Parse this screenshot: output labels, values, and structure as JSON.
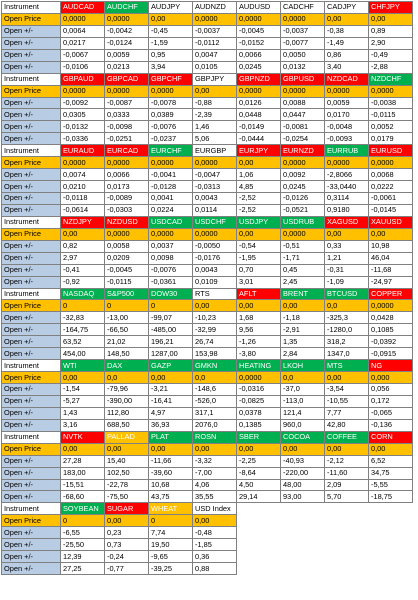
{
  "table": {
    "row_labels": {
      "instrument": "Instrument",
      "open_price": "Open Price",
      "open_change": "Open +/-"
    },
    "blocks": [
      {
        "headers": [
          {
            "name": "AUDCAD",
            "color": "red"
          },
          {
            "name": "AUDCHF",
            "color": "green"
          },
          {
            "name": "AUDJPY",
            "color": "white"
          },
          {
            "name": "AUDNZD",
            "color": "white"
          },
          {
            "name": "AUDUSD",
            "color": "white"
          },
          {
            "name": "CADCHF",
            "color": "white"
          },
          {
            "name": "CADJPY",
            "color": "white"
          },
          {
            "name": "CHFJPY",
            "color": "red"
          }
        ],
        "open_price": [
          "0,0000",
          "0,0000",
          "0,00",
          "0,0000",
          "0,0000",
          "0,0000",
          "0,00",
          "0,00"
        ],
        "changes": [
          [
            "0,0064",
            "-0,0042",
            "-0,45",
            "-0,0037",
            "-0,0045",
            "-0,0037",
            "-0,38",
            "0,89"
          ],
          [
            "0,0217",
            "-0,0124",
            "-1,59",
            "-0,0112",
            "-0,0152",
            "-0,0077",
            "-1,49",
            "2,90"
          ],
          [
            "-0,0067",
            "0,0059",
            "0,95",
            "0,0047",
            "0,0066",
            "0,0050",
            "0,86",
            "-0,49"
          ],
          [
            "-0,0106",
            "0,0213",
            "3,94",
            "0,0105",
            "0,0245",
            "0,0132",
            "3,40",
            "-2,88"
          ]
        ]
      },
      {
        "headers": [
          {
            "name": "GBPAUD",
            "color": "red"
          },
          {
            "name": "GBPCAD",
            "color": "red"
          },
          {
            "name": "GBPCHF",
            "color": "red"
          },
          {
            "name": "GBPJPY",
            "color": "white"
          },
          {
            "name": "GBPNZD",
            "color": "red"
          },
          {
            "name": "GBPUSD",
            "color": "red"
          },
          {
            "name": "NZDCAD",
            "color": "red"
          },
          {
            "name": "NZDCHF",
            "color": "green"
          }
        ],
        "open_price": [
          "0,0000",
          "0,0000",
          "0,0000",
          "0,00",
          "0,0000",
          "0,0000",
          "0,0000",
          "0,0000"
        ],
        "changes": [
          [
            "-0,0092",
            "-0,0087",
            "-0,0078",
            "-0,88",
            "0,0126",
            "0,0088",
            "0,0059",
            "-0,0038"
          ],
          [
            "0,0305",
            "0,0333",
            "0,0389",
            "-2,39",
            "0,0448",
            "0,0447",
            "0,0170",
            "-0,0115"
          ],
          [
            "-0,0132",
            "-0,0098",
            "-0,0076",
            "1,46",
            "-0,0149",
            "-0,0081",
            "-0,0048",
            "0,0052"
          ],
          [
            "-0,0336",
            "-0,0251",
            "-0,0237",
            "5,06",
            "-0,0444",
            "-0,0254",
            "-0,0093",
            "0,0179"
          ]
        ]
      },
      {
        "headers": [
          {
            "name": "EURAUD",
            "color": "red"
          },
          {
            "name": "EURCAD",
            "color": "red"
          },
          {
            "name": "EURCHF",
            "color": "green"
          },
          {
            "name": "EURGBP",
            "color": "white"
          },
          {
            "name": "EURJPY",
            "color": "red"
          },
          {
            "name": "EURNZD",
            "color": "red"
          },
          {
            "name": "EURRUB",
            "color": "green"
          },
          {
            "name": "EURUSD",
            "color": "red"
          }
        ],
        "open_price": [
          "0,0000",
          "0,0000",
          "0,0000",
          "0,0000",
          "0,00",
          "0,0000",
          "0,0000",
          "0,0000"
        ],
        "changes": [
          [
            "0,0074",
            "0,0066",
            "-0,0041",
            "-0,0047",
            "1,06",
            "0,0092",
            "-2,8066",
            "0,0068"
          ],
          [
            "0,0210",
            "0,0173",
            "-0,0128",
            "-0,0313",
            "4,85",
            "0,0245",
            "-33,0440",
            "0,0222"
          ],
          [
            "-0,0118",
            "-0,0089",
            "0,0041",
            "0,0043",
            "-2,52",
            "-0,0126",
            "0,3114",
            "-0,0061"
          ],
          [
            "-0,0614",
            "-0,0303",
            "0,0224",
            "0,0114",
            "-2,52",
            "-0,0521",
            "0,9180",
            "-0,0145"
          ]
        ]
      },
      {
        "headers": [
          {
            "name": "NZDJPY",
            "color": "red"
          },
          {
            "name": "NZDUSD",
            "color": "red"
          },
          {
            "name": "USDCAD",
            "color": "green"
          },
          {
            "name": "USDCHF",
            "color": "green"
          },
          {
            "name": "USDJPY",
            "color": "green"
          },
          {
            "name": "USDRUB",
            "color": "green"
          },
          {
            "name": "XAGUSD",
            "color": "red"
          },
          {
            "name": "XAUUSD",
            "color": "red"
          }
        ],
        "open_price": [
          "0,00",
          "0,0000",
          "0,0000",
          "0,0000",
          "0,00",
          "0,0000",
          "0,00",
          "0,00"
        ],
        "changes": [
          [
            "0,82",
            "0,0058",
            "0,0037",
            "-0,0050",
            "-0,54",
            "-0,51",
            "0,33",
            "10,98"
          ],
          [
            "2,97",
            "0,0209",
            "0,0098",
            "-0,0176",
            "-1,95",
            "-1,71",
            "1,21",
            "46,04"
          ],
          [
            "-0,41",
            "-0,0045",
            "-0,0076",
            "0,0043",
            "0,70",
            "0,45",
            "-0,31",
            "-11,68"
          ],
          [
            "-0,92",
            "-0,0115",
            "-0,0361",
            "0,0109",
            "3,01",
            "2,45",
            "-1,09",
            "-24,97"
          ]
        ]
      },
      {
        "headers": [
          {
            "name": "NASDAQ",
            "color": "green"
          },
          {
            "name": "S&P500",
            "color": "green"
          },
          {
            "name": "DOW30",
            "color": "green"
          },
          {
            "name": "RTS",
            "color": "white"
          },
          {
            "name": "AFLT",
            "color": "red"
          },
          {
            "name": "BRENT",
            "color": "green"
          },
          {
            "name": "BTCUSD",
            "color": "green"
          },
          {
            "name": "COPPER",
            "color": "red"
          }
        ],
        "open_price": [
          "0",
          "0",
          "0",
          "0,00",
          "0,00",
          "0,00",
          "0,0",
          "0,0000"
        ],
        "changes": [
          [
            "-32,83",
            "-13,00",
            "-99,07",
            "-10,23",
            "1,68",
            "-1,18",
            "-325,3",
            "0,0428"
          ],
          [
            "-164,75",
            "-66,50",
            "-485,00",
            "-32,99",
            "9,56",
            "-2,91",
            "-1280,0",
            "0,1085"
          ],
          [
            "63,52",
            "21,02",
            "196,21",
            "26,74",
            "-1,26",
            "1,35",
            "318,2",
            "-0,0392"
          ],
          [
            "454,00",
            "148,50",
            "1287,00",
            "153,98",
            "-3,80",
            "2,84",
            "1347,0",
            "-0,0915"
          ]
        ]
      },
      {
        "headers": [
          {
            "name": "WTI",
            "color": "green"
          },
          {
            "name": "DAX",
            "color": "green"
          },
          {
            "name": "GAZP",
            "color": "green"
          },
          {
            "name": "GMKN",
            "color": "green"
          },
          {
            "name": "HEATING",
            "color": "green"
          },
          {
            "name": "LKOH",
            "color": "green"
          },
          {
            "name": "MTS",
            "color": "green"
          },
          {
            "name": "NG",
            "color": "red"
          }
        ],
        "open_price": [
          "0,00",
          "0,0",
          "0,00",
          "0,0",
          "0,0000",
          "0,0",
          "0,00",
          "0,000"
        ],
        "changes": [
          [
            "-1,54",
            "-79,96",
            "-3,21",
            "-148,6",
            "-0,0316",
            "-37,0",
            "-3,54",
            "0,056"
          ],
          [
            "-5,27",
            "-390,00",
            "-16,41",
            "-526,0",
            "-0,0825",
            "-113,0",
            "-10,55",
            "0,172"
          ],
          [
            "1,43",
            "112,80",
            "4,97",
            "317,1",
            "0,0378",
            "121,4",
            "7,77",
            "-0,065"
          ],
          [
            "3,16",
            "688,50",
            "36,93",
            "2076,0",
            "0,1385",
            "960,0",
            "42,80",
            "-0,136"
          ]
        ]
      },
      {
        "headers": [
          {
            "name": "NVTK",
            "color": "red"
          },
          {
            "name": "PALLAD",
            "color": "yellow"
          },
          {
            "name": "PLAT",
            "color": "green"
          },
          {
            "name": "ROSN",
            "color": "green"
          },
          {
            "name": "SBER",
            "color": "green"
          },
          {
            "name": "COCOA",
            "color": "green"
          },
          {
            "name": "COFFEE",
            "color": "green"
          },
          {
            "name": "CORN",
            "color": "red"
          }
        ],
        "open_price": [
          "0,00",
          "0,00",
          "0,00",
          "0,00",
          "0,00",
          "0,00",
          "0,00",
          "0,00"
        ],
        "changes": [
          [
            "27,28",
            "15,40",
            "-11,66",
            "-3,32",
            "-2,25",
            "-40,93",
            "-2,12",
            "6,52"
          ],
          [
            "183,00",
            "102,50",
            "-39,60",
            "-7,00",
            "-8,64",
            "-220,00",
            "-11,60",
            "34,75"
          ],
          [
            "-15,51",
            "-22,78",
            "10,68",
            "4,06",
            "4,50",
            "48,00",
            "2,09",
            "-5,55"
          ],
          [
            "-68,60",
            "-75,50",
            "43,75",
            "35,55",
            "29,14",
            "93,00",
            "5,70",
            "-18,75"
          ]
        ]
      },
      {
        "headers": [
          {
            "name": "SOYBEAN",
            "color": "green"
          },
          {
            "name": "SUGAR",
            "color": "red"
          },
          {
            "name": "WHEAT",
            "color": "yellow"
          },
          {
            "name": "USD Index",
            "color": "white"
          }
        ],
        "open_price": [
          "0",
          "0,00",
          "0",
          "0,00"
        ],
        "changes": [
          [
            "-6,55",
            "0,23",
            "7,74",
            "-0,48"
          ],
          [
            "-25,50",
            "0,73",
            "19,50",
            "-1,85"
          ],
          [
            "12,39",
            "-0,24",
            "-9,65",
            "0,36"
          ],
          [
            "27,25",
            "-0,77",
            "-39,25",
            "0,88"
          ]
        ]
      }
    ]
  }
}
